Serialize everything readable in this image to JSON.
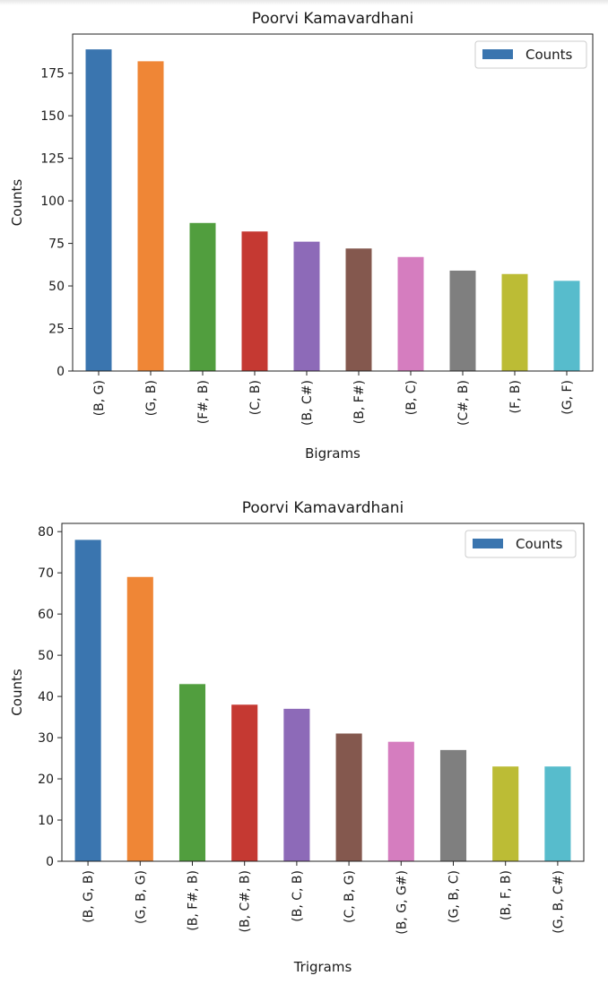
{
  "chart_data": [
    {
      "type": "bar",
      "title": "Poorvi Kamavardhani",
      "xlabel": "Bigrams",
      "ylabel": "Counts",
      "categories": [
        "(B, G)",
        "(G, B)",
        "(F#, B)",
        "(C, B)",
        "(B, C#)",
        "(B, F#)",
        "(B, C)",
        "(C#, B)",
        "(F, B)",
        "(G, F)"
      ],
      "series": [
        {
          "name": "Counts",
          "values": [
            189,
            182,
            87,
            82,
            76,
            72,
            67,
            59,
            57,
            53
          ]
        }
      ],
      "colors": [
        "#3a75af",
        "#ef8636",
        "#519e3e",
        "#c53932",
        "#8d6ab8",
        "#84584e",
        "#d57dbf",
        "#7f7f7f",
        "#bcbc35",
        "#57bccc"
      ],
      "yticks": [
        0,
        25,
        50,
        75,
        100,
        125,
        150,
        175
      ],
      "ylim": [
        0,
        198
      ],
      "grid": false,
      "legend": "top-right"
    },
    {
      "type": "bar",
      "title": "Poorvi Kamavardhani",
      "xlabel": "Trigrams",
      "ylabel": "Counts",
      "categories": [
        "(B, G, B)",
        "(G, B, G)",
        "(B, F#, B)",
        "(B, C#, B)",
        "(B, C, B)",
        "(C, B, G)",
        "(B, G, G#)",
        "(G, B, C)",
        "(B, F, B)",
        "(G, B, C#)"
      ],
      "series": [
        {
          "name": "Counts",
          "values": [
            78,
            69,
            43,
            38,
            37,
            31,
            29,
            27,
            23,
            23
          ]
        }
      ],
      "colors": [
        "#3a75af",
        "#ef8636",
        "#519e3e",
        "#c53932",
        "#8d6ab8",
        "#84584e",
        "#d57dbf",
        "#7f7f7f",
        "#bcbc35",
        "#57bccc"
      ],
      "yticks": [
        0,
        10,
        20,
        30,
        40,
        50,
        60,
        70,
        80
      ],
      "ylim": [
        0,
        82
      ],
      "grid": false,
      "legend": "top-right"
    }
  ]
}
